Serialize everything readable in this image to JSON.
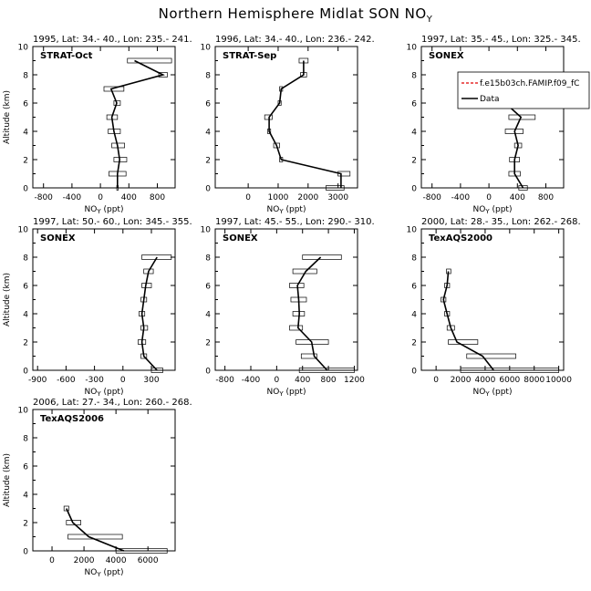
{
  "figure": {
    "title": "Northern Hemisphere Midlat SON NO",
    "title_sub": "Y"
  },
  "chart_data": [
    {
      "type": "line",
      "header": "1995, Lat: 34.- 40., Lon: 235.- 241.",
      "campaign": "STRAT-Oct",
      "xlabel": "NOY (ppt)",
      "ylabel": "Altitude (km)",
      "xlim": [
        -950,
        1050
      ],
      "ylim": [
        0,
        10
      ],
      "xticks": [
        -800,
        -400,
        0,
        400,
        800
      ],
      "yticks": [
        0,
        2,
        4,
        6,
        8,
        10
      ],
      "series": [
        {
          "name": "Data",
          "altitude": [
            0,
            1,
            2,
            3,
            4,
            5,
            6,
            7,
            8,
            9
          ],
          "values": [
            240,
            240,
            270,
            240,
            190,
            160,
            230,
            150,
            880,
            480
          ],
          "low": [
            230,
            120,
            190,
            160,
            110,
            90,
            190,
            50,
            820,
            380
          ],
          "high": [
            250,
            360,
            370,
            340,
            280,
            240,
            280,
            330,
            940,
            1000
          ]
        }
      ]
    },
    {
      "type": "line",
      "header": "1996, Lat: 34.- 40., Lon: 236.- 242.",
      "campaign": "STRAT-Sep",
      "xlabel": "NOY (ppt)",
      "ylabel": "",
      "xlim": [
        -1100,
        3650
      ],
      "ylim": [
        0,
        10
      ],
      "xticks": [
        0,
        1000,
        2000,
        3000
      ],
      "yticks": [
        0,
        2,
        4,
        6,
        8,
        10
      ],
      "series": [
        {
          "name": "Data",
          "altitude": [
            0,
            1,
            2,
            3,
            4,
            5,
            6,
            7,
            8,
            9
          ],
          "values": [
            3100,
            3100,
            1100,
            950,
            700,
            700,
            1050,
            1100,
            1850,
            1850
          ],
          "low": [
            2600,
            3000,
            1050,
            850,
            650,
            550,
            1000,
            1050,
            1750,
            1700
          ],
          "high": [
            3200,
            3400,
            1150,
            1050,
            750,
            800,
            1100,
            1150,
            1950,
            2000
          ]
        }
      ]
    },
    {
      "type": "line",
      "header": "1997, Lat: 35.- 45., Lon: 325.- 345.",
      "campaign": "SONEX",
      "xlabel": "NOY (ppt)",
      "ylabel": "",
      "xlim": [
        -950,
        1050
      ],
      "ylim": [
        0,
        10
      ],
      "xticks": [
        -800,
        -400,
        0,
        400,
        800
      ],
      "yticks": [
        0,
        2,
        4,
        6,
        8,
        10
      ],
      "legend_model": "f.e15b03ch.FAMIP.f09_fC",
      "legend_data": "Data",
      "series": [
        {
          "name": "Data",
          "altitude": [
            0,
            1,
            2,
            3,
            4,
            5,
            6,
            7
          ],
          "values": [
            480,
            360,
            360,
            410,
            360,
            450,
            230,
            930
          ],
          "low": [
            420,
            280,
            290,
            360,
            230,
            280,
            190,
            850
          ],
          "high": [
            540,
            440,
            430,
            460,
            480,
            650,
            290,
            1010
          ]
        }
      ]
    },
    {
      "type": "line",
      "header": "1997, Lat: 50.- 60., Lon: 345.- 355.",
      "campaign": "SONEX",
      "xlabel": "NOY (ppt)",
      "ylabel": "Altitude (km)",
      "xlim": [
        -950,
        550
      ],
      "ylim": [
        0,
        10
      ],
      "xticks": [
        -900,
        -600,
        -300,
        0,
        300
      ],
      "yticks": [
        0,
        2,
        4,
        6,
        8,
        10
      ],
      "series": [
        {
          "name": "Data",
          "altitude": [
            0,
            1,
            2,
            3,
            4,
            5,
            6,
            7,
            8
          ],
          "values": [
            360,
            220,
            200,
            220,
            200,
            220,
            240,
            270,
            360
          ],
          "low": [
            300,
            190,
            160,
            190,
            170,
            190,
            200,
            220,
            200
          ],
          "high": [
            420,
            250,
            240,
            260,
            230,
            250,
            300,
            320,
            510
          ]
        }
      ]
    },
    {
      "type": "line",
      "header": "1997, Lat: 45.- 55., Lon: 290.- 310.",
      "campaign": "SONEX",
      "xlabel": "NOY (ppt)",
      "ylabel": "",
      "xlim": [
        -950,
        1250
      ],
      "ylim": [
        0,
        10
      ],
      "xticks": [
        -800,
        -400,
        0,
        400,
        800,
        1200
      ],
      "yticks": [
        0,
        2,
        4,
        6,
        8,
        10
      ],
      "series": [
        {
          "name": "Data",
          "altitude": [
            0,
            1,
            2,
            3,
            4,
            5,
            6,
            7,
            8
          ],
          "values": [
            780,
            580,
            540,
            330,
            350,
            340,
            320,
            450,
            680
          ],
          "low": [
            350,
            380,
            300,
            200,
            250,
            220,
            200,
            250,
            400
          ],
          "high": [
            1200,
            620,
            800,
            400,
            430,
            460,
            420,
            620,
            1000
          ]
        }
      ]
    },
    {
      "type": "line",
      "header": "2000, Lat: 28.- 35., Lon: 262.- 268.",
      "campaign": "TexAQS2000",
      "xlabel": "NOY (ppt)",
      "ylabel": "",
      "xlim": [
        -1200,
        10400
      ],
      "ylim": [
        0,
        10
      ],
      "xticks": [
        0,
        2000,
        4000,
        6000,
        8000,
        10000
      ],
      "yticks": [
        0,
        2,
        4,
        6,
        8,
        10
      ],
      "series": [
        {
          "name": "Data",
          "altitude": [
            0,
            1,
            2,
            3,
            4,
            5,
            6,
            7
          ],
          "values": [
            4700,
            3800,
            1700,
            1200,
            900,
            600,
            900,
            1000
          ],
          "low": [
            2000,
            2500,
            1000,
            900,
            700,
            400,
            700,
            850
          ],
          "high": [
            10000,
            6500,
            3400,
            1500,
            1100,
            800,
            1100,
            1200
          ]
        }
      ]
    },
    {
      "type": "line",
      "header": "2006, Lat: 27.- 34., Lon: 260.- 268.",
      "campaign": "TexAQS2006",
      "xlabel": "NOY (ppt)",
      "ylabel": "Altitude (km)",
      "xlim": [
        -1200,
        7700
      ],
      "ylim": [
        0,
        10
      ],
      "xticks": [
        0,
        2000,
        4000,
        6000
      ],
      "yticks": [
        0,
        2,
        4,
        6,
        8,
        10
      ],
      "series": [
        {
          "name": "Data",
          "altitude": [
            0,
            1,
            2,
            3
          ],
          "values": [
            4500,
            2300,
            1300,
            900
          ],
          "low": [
            4000,
            1000,
            900,
            750
          ],
          "high": [
            7200,
            4400,
            1800,
            1050
          ]
        }
      ]
    }
  ]
}
